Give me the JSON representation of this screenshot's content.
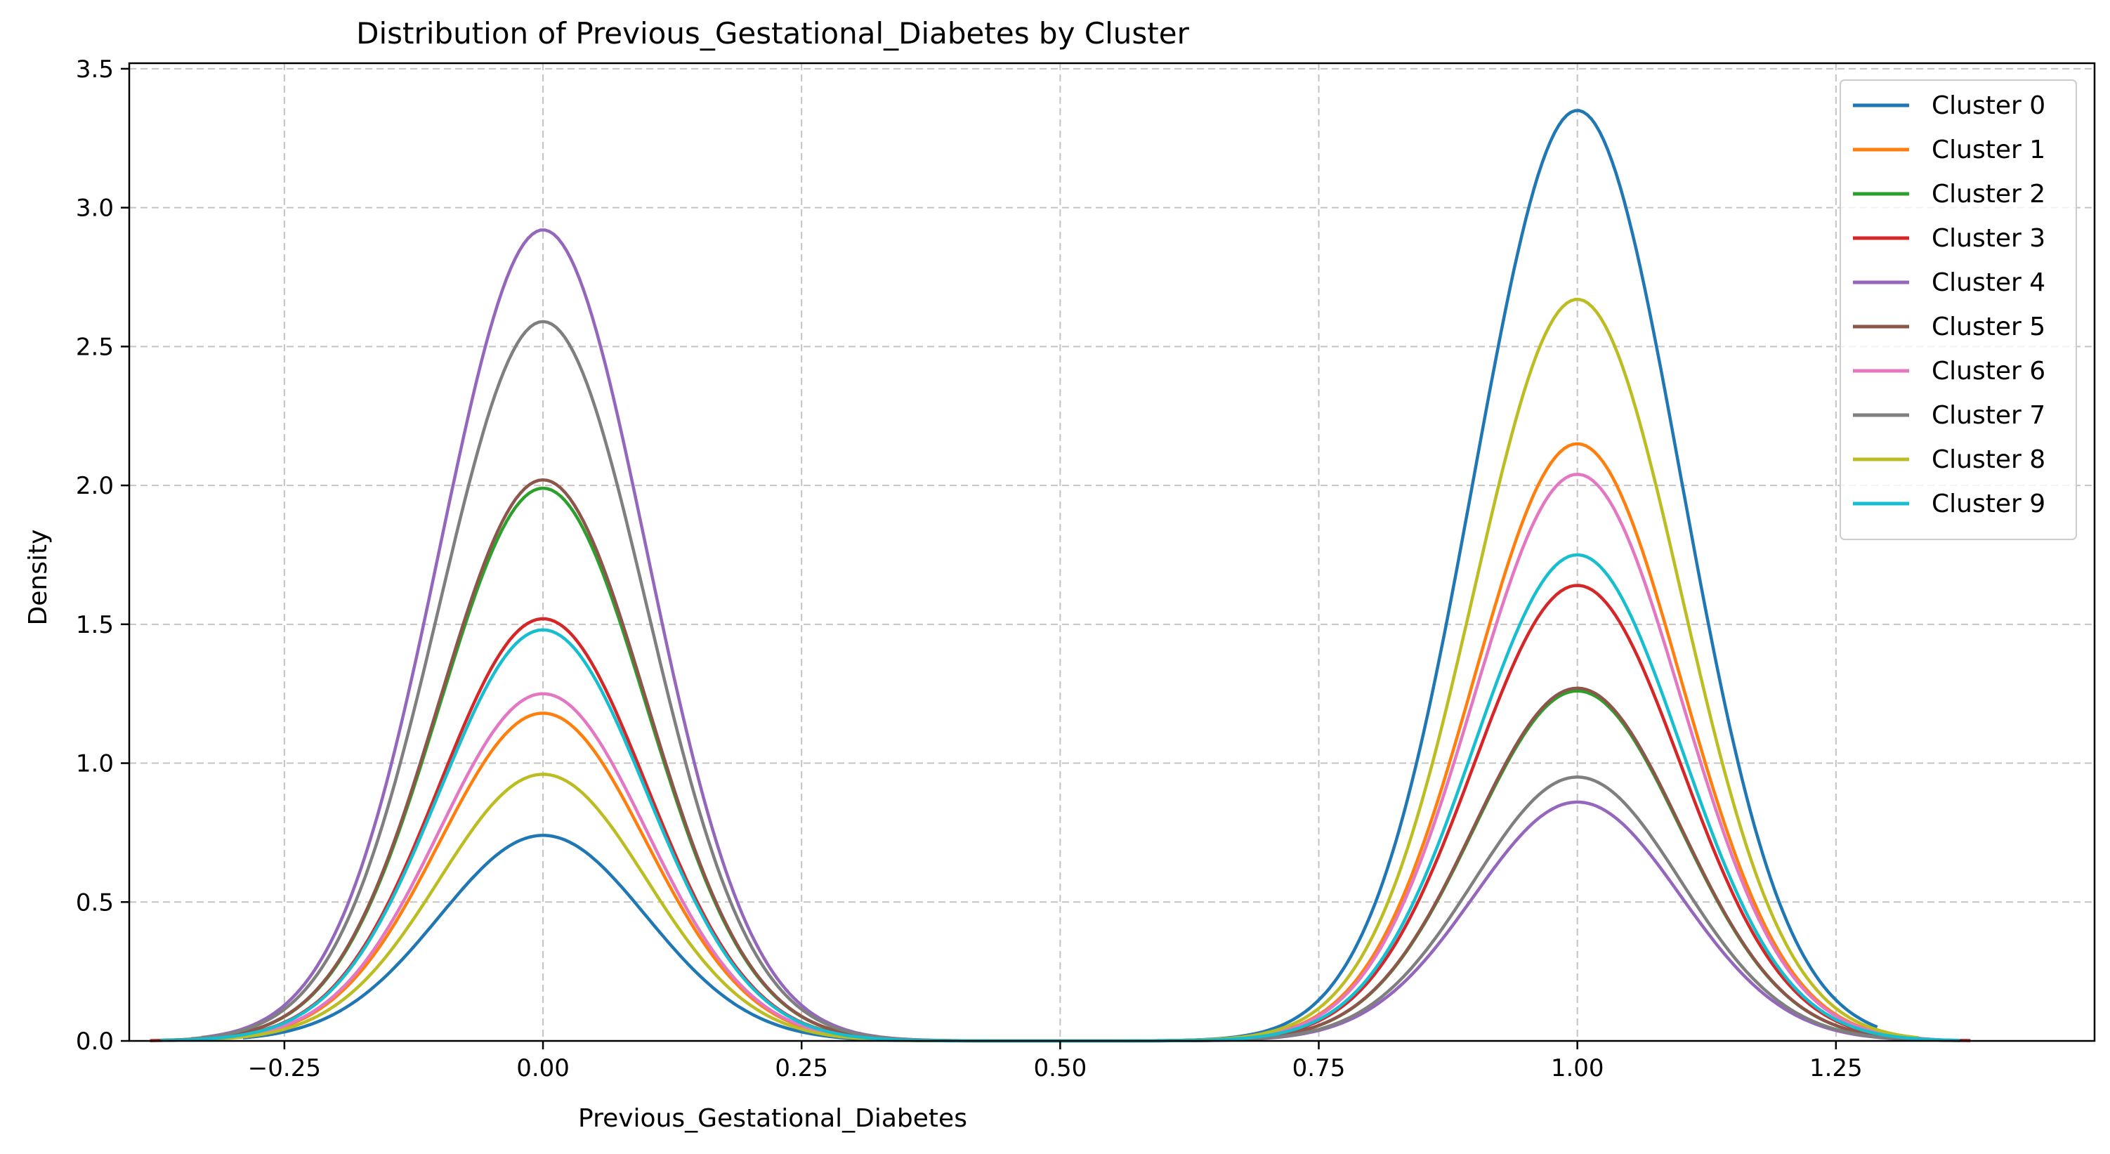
{
  "chart_data": {
    "type": "line",
    "title": "Distribution of Previous_Gestational_Diabetes by Cluster",
    "xlabel": "Previous_Gestational_Diabetes",
    "ylabel": "Density",
    "xlim": [
      -0.4,
      1.5
    ],
    "ylim": [
      0,
      3.52
    ],
    "x_ticks": [
      -0.25,
      0.0,
      0.25,
      0.5,
      0.75,
      1.0,
      1.25
    ],
    "x_tick_labels": [
      "−0.25",
      "0.00",
      "0.25",
      "0.50",
      "0.75",
      "1.00",
      "1.25"
    ],
    "y_ticks": [
      0.0,
      0.5,
      1.0,
      1.5,
      2.0,
      2.5,
      3.0,
      3.5
    ],
    "y_tick_labels": [
      "0.0",
      "0.5",
      "1.0",
      "1.5",
      "2.0",
      "2.5",
      "3.0",
      "3.5"
    ],
    "grid": true,
    "legend_position": "top-right",
    "series": [
      {
        "name": "Cluster 0",
        "color": "#1f77b4",
        "peak_at_0": 0.74,
        "peak_at_1": 3.35,
        "x_range": [
          -0.29,
          1.29
        ]
      },
      {
        "name": "Cluster 1",
        "color": "#ff7f0e",
        "peak_at_0": 1.18,
        "peak_at_1": 2.15,
        "x_range": [
          -0.34,
          1.34
        ]
      },
      {
        "name": "Cluster 2",
        "color": "#2ca02c",
        "peak_at_0": 1.99,
        "peak_at_1": 1.26,
        "x_range": [
          -0.37,
          1.37
        ]
      },
      {
        "name": "Cluster 3",
        "color": "#d62728",
        "peak_at_0": 1.52,
        "peak_at_1": 1.64,
        "x_range": [
          -0.38,
          1.38
        ]
      },
      {
        "name": "Cluster 4",
        "color": "#9467bd",
        "peak_at_0": 2.92,
        "peak_at_1": 0.86,
        "x_range": [
          -0.33,
          1.33
        ]
      },
      {
        "name": "Cluster 5",
        "color": "#8c564b",
        "peak_at_0": 2.02,
        "peak_at_1": 1.27,
        "x_range": [
          -0.37,
          1.37
        ]
      },
      {
        "name": "Cluster 6",
        "color": "#e377c2",
        "peak_at_0": 1.25,
        "peak_at_1": 2.04,
        "x_range": [
          -0.35,
          1.35
        ]
      },
      {
        "name": "Cluster 7",
        "color": "#7f7f7f",
        "peak_at_0": 2.59,
        "peak_at_1": 0.95,
        "x_range": [
          -0.34,
          1.34
        ]
      },
      {
        "name": "Cluster 8",
        "color": "#bcbd22",
        "peak_at_0": 0.96,
        "peak_at_1": 2.67,
        "x_range": [
          -0.33,
          1.33
        ]
      },
      {
        "name": "Cluster 9",
        "color": "#17becf",
        "peak_at_0": 1.48,
        "peak_at_1": 1.75,
        "x_range": [
          -0.37,
          1.37
        ]
      }
    ]
  }
}
